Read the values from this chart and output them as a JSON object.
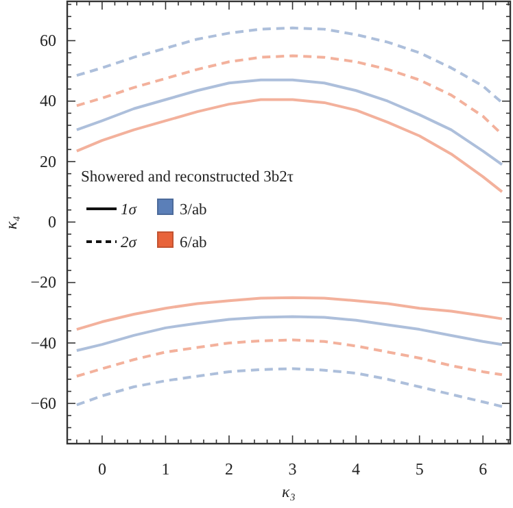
{
  "chart_data": {
    "type": "line",
    "xlabel": "κ₃",
    "ylabel": "κ₄",
    "legend_title": "Showered and reconstructed 3b2τ",
    "annotations": [
      "1σ",
      "2σ"
    ],
    "legend": "left",
    "grid": false,
    "x": [
      -0.4,
      0,
      0.5,
      1,
      1.5,
      2,
      2.5,
      3,
      3.5,
      4,
      4.5,
      5,
      5.5,
      6,
      6.3
    ],
    "xlim": [
      -0.55,
      6.43
    ],
    "ylim": [
      -73.3,
      73
    ],
    "xticks": [
      {
        "value": -0.4,
        "label": null
      },
      {
        "value": -0.2,
        "label": null
      },
      0,
      {
        "value": 0.2,
        "label": null
      },
      {
        "value": 0.4,
        "label": null
      },
      {
        "value": 0.6,
        "label": null
      },
      {
        "value": 0.8,
        "label": null
      },
      1,
      {
        "value": 1.2,
        "label": null
      },
      {
        "value": 1.4,
        "label": null
      },
      {
        "value": 1.6,
        "label": null
      },
      {
        "value": 1.8,
        "label": null
      },
      2,
      {
        "value": 2.2,
        "label": null
      },
      {
        "value": 2.4,
        "label": null
      },
      {
        "value": 2.6,
        "label": null
      },
      {
        "value": 2.8,
        "label": null
      },
      3,
      {
        "value": 3.2,
        "label": null
      },
      {
        "value": 3.4,
        "label": null
      },
      {
        "value": 3.6,
        "label": null
      },
      {
        "value": 3.8,
        "label": null
      },
      4,
      {
        "value": 4.2,
        "label": null
      },
      {
        "value": 4.4,
        "label": null
      },
      {
        "value": 4.6,
        "label": null
      },
      {
        "value": 4.8,
        "label": null
      },
      5,
      {
        "value": 5.2,
        "label": null
      },
      {
        "value": 5.4,
        "label": null
      },
      {
        "value": 5.6,
        "label": null
      },
      {
        "value": 5.8,
        "label": null
      },
      6,
      {
        "value": 6.2,
        "label": null
      },
      {
        "value": 6.4,
        "label": null
      }
    ],
    "yticks": [
      {
        "value": -72,
        "label": null
      },
      {
        "value": -68,
        "label": null
      },
      {
        "value": -64,
        "label": null
      },
      -60,
      {
        "value": -56,
        "label": null
      },
      {
        "value": -52,
        "label": null
      },
      {
        "value": -48,
        "label": null
      },
      {
        "value": -44,
        "label": null
      },
      -40,
      {
        "value": -36,
        "label": null
      },
      {
        "value": -32,
        "label": null
      },
      {
        "value": -28,
        "label": null
      },
      {
        "value": -24,
        "label": null
      },
      -20,
      {
        "value": -16,
        "label": null
      },
      {
        "value": -12,
        "label": null
      },
      {
        "value": -8,
        "label": null
      },
      {
        "value": -4,
        "label": null
      },
      0,
      {
        "value": 4,
        "label": null
      },
      {
        "value": 8,
        "label": null
      },
      {
        "value": 12,
        "label": null
      },
      {
        "value": 16,
        "label": null
      },
      20,
      {
        "value": 24,
        "label": null
      },
      {
        "value": 28,
        "label": null
      },
      {
        "value": 32,
        "label": null
      },
      {
        "value": 36,
        "label": null
      },
      40,
      {
        "value": 44,
        "label": null
      },
      {
        "value": 48,
        "label": null
      },
      {
        "value": 52,
        "label": null
      },
      {
        "value": 56,
        "label": null
      },
      60,
      {
        "value": 64,
        "label": null
      },
      {
        "value": 68,
        "label": null
      },
      {
        "value": 72,
        "label": null
      }
    ],
    "series": [
      {
        "name": "3/ab",
        "color": "#5b7fb8",
        "line_style": "solid",
        "values": [
          30.5,
          33.5,
          37.5,
          40.5,
          43.5,
          46,
          47,
          47,
          46,
          43.5,
          40,
          35.5,
          30.5,
          23.5,
          19
        ]
      },
      {
        "name": "6/ab",
        "color": "#e8633a",
        "line_style": "solid",
        "values": [
          23.5,
          27,
          30.5,
          33.5,
          36.5,
          39,
          40.5,
          40.5,
          39.5,
          37,
          33,
          28.5,
          22.5,
          15,
          10
        ]
      },
      {
        "color": "#5b7fb8",
        "line_style": "dashed",
        "values": [
          48.5,
          51,
          54.5,
          57.5,
          60.5,
          62.5,
          63.8,
          64.2,
          63.8,
          62,
          59.5,
          56,
          51,
          45,
          39.5
        ]
      },
      {
        "color": "#e8633a",
        "line_style": "dashed",
        "values": [
          38.5,
          41,
          44.5,
          47.5,
          50.5,
          53,
          54.5,
          55,
          54.5,
          53,
          50.5,
          47,
          42,
          35,
          29
        ]
      },
      {
        "color": "#5b7fb8",
        "line_style": "solid",
        "values": [
          -42.5,
          -40.5,
          -37.5,
          -35,
          -33.5,
          -32.2,
          -31.5,
          -31.3,
          -31.5,
          -32.5,
          -34,
          -35.5,
          -37.5,
          -39.5,
          -40.5
        ]
      },
      {
        "color": "#e8633a",
        "line_style": "solid",
        "values": [
          -35.5,
          -33,
          -30.5,
          -28.5,
          -27,
          -26,
          -25.2,
          -25,
          -25.2,
          -26,
          -27,
          -28.5,
          -29.5,
          -31,
          -32
        ]
      },
      {
        "color": "#5b7fb8",
        "line_style": "dashed",
        "values": [
          -60.5,
          -57.5,
          -54.5,
          -52.5,
          -51,
          -49.5,
          -48.8,
          -48.5,
          -49,
          -50,
          -52,
          -54.5,
          -57,
          -59.5,
          -61
        ]
      },
      {
        "color": "#e8633a",
        "line_style": "dashed",
        "values": [
          -51,
          -48.5,
          -45.5,
          -43,
          -41.5,
          -40,
          -39.3,
          -39,
          -39.5,
          -41,
          -43,
          -45,
          -47.5,
          -49.5,
          -50.5
        ]
      }
    ]
  }
}
